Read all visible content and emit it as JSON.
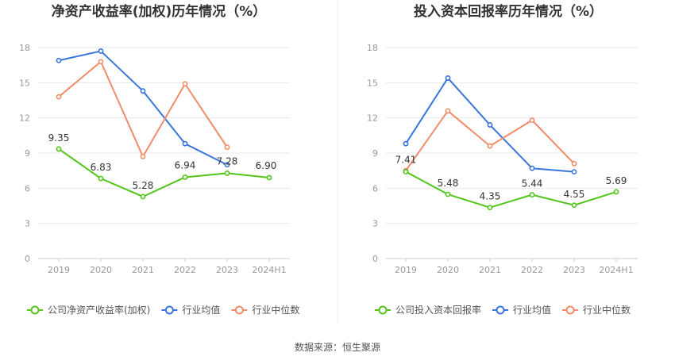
{
  "chart_data": [
    {
      "type": "line",
      "title": "净资产收益率(加权)历年情况（%）",
      "categories": [
        "2019",
        "2020",
        "2021",
        "2022",
        "2023",
        "2024H1"
      ],
      "ylim": [
        0,
        18
      ],
      "yticks": [
        0,
        3,
        6,
        9,
        12,
        15,
        18
      ],
      "grid": true,
      "legend_position": "bottom",
      "series": [
        {
          "name": "公司净资产收益率(加权)",
          "color": "#52c41a",
          "values": [
            9.35,
            6.83,
            5.28,
            6.94,
            7.28,
            6.9
          ],
          "labels": [
            "9.35",
            "6.83",
            "5.28",
            "6.94",
            "7.28",
            "6.90"
          ]
        },
        {
          "name": "行业均值",
          "color": "#3a75dd",
          "values": [
            16.9,
            17.7,
            14.3,
            9.8,
            8.0,
            null
          ]
        },
        {
          "name": "行业中位数",
          "color": "#f28c68",
          "values": [
            13.8,
            16.8,
            8.7,
            14.9,
            9.5,
            null
          ]
        }
      ]
    },
    {
      "type": "line",
      "title": "投入资本回报率历年情况（%）",
      "categories": [
        "2019",
        "2020",
        "2021",
        "2022",
        "2023",
        "2024H1"
      ],
      "ylim": [
        0,
        18
      ],
      "yticks": [
        0,
        3,
        6,
        9,
        12,
        15,
        18
      ],
      "grid": true,
      "legend_position": "bottom",
      "series": [
        {
          "name": "公司投入资本回报率",
          "color": "#52c41a",
          "values": [
            7.41,
            5.48,
            4.35,
            5.44,
            4.55,
            5.69
          ],
          "labels": [
            "7.41",
            "5.48",
            "4.35",
            "5.44",
            "4.55",
            "5.69"
          ]
        },
        {
          "name": "行业均值",
          "color": "#3a75dd",
          "values": [
            9.8,
            15.4,
            11.4,
            7.7,
            7.4,
            null
          ]
        },
        {
          "name": "行业中位数",
          "color": "#f28c68",
          "values": [
            7.5,
            12.6,
            9.6,
            11.8,
            8.1,
            null
          ]
        }
      ]
    }
  ],
  "footer": {
    "source": "数据来源：恒生聚源"
  }
}
